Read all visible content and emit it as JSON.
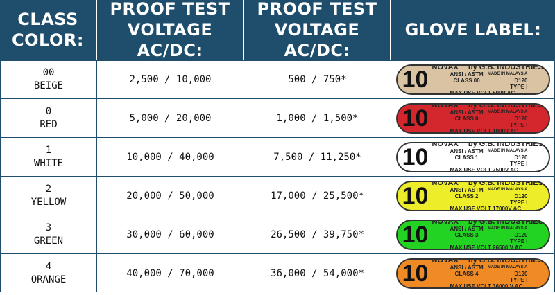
{
  "header": {
    "class_color": [
      "CLASS",
      "COLOR:"
    ],
    "proof_ac_dc_1": [
      "PROOF TEST",
      "VOLTAGE AC/DC:"
    ],
    "proof_ac_dc_2": [
      "PROOF TEST",
      "VOLTAGE AC/DC:"
    ],
    "glove_label": "GLOVE LABEL:"
  },
  "rows": [
    {
      "class": "00",
      "color": "BEIGE",
      "proof1": "2,500 / 10,000",
      "proof2": "500 / 750*",
      "label": {
        "bg": "#d9c3a3",
        "big": "10",
        "line1": "NOVAX™  by G.B. INDUSTRIES",
        "ansi": "ANSI / ASTM",
        "made": "MADE IN MALAYSIA",
        "d120": "D120",
        "class_line": "CLASS 00",
        "type": "TYPE I",
        "bottom": "MAX USE VOLT 500V AC"
      }
    },
    {
      "class": "0",
      "color": "RED",
      "proof1": "5,000 / 20,000",
      "proof2": "1,000 / 1,500*",
      "label": {
        "bg": "#d4262d",
        "big": "10",
        "line1": "NOVAX™  by G.B. INDUSTRIES",
        "ansi": "ANSI / ASTM",
        "made": "MADE IN MALAYSIA",
        "d120": "D120",
        "class_line": "CLASS 0",
        "type": "TYPE I",
        "bottom": "MAX USE VOLT 1000V AC"
      }
    },
    {
      "class": "1",
      "color": "WHITE",
      "proof1": "10,000 / 40,000",
      "proof2": "7,500 / 11,250*",
      "label": {
        "bg": "#ffffff",
        "big": "10",
        "line1": "NOVAX™  by G.B. INDUSTRIES",
        "ansi": "ANSI / ASTM",
        "made": "MADE IN MALAYSIA",
        "d120": "D120",
        "class_line": "CLASS 1",
        "type": "TYPE I",
        "bottom": "MAX USE VOLT 7500V AC"
      }
    },
    {
      "class": "2",
      "color": "YELLOW",
      "proof1": "20,000 / 50,000",
      "proof2": "17,000 / 25,500*",
      "label": {
        "bg": "#eded2a",
        "big": "10",
        "line1": "NOVAX™  by G.B. INDUSTRIES",
        "ansi": "ANSI / ASTM",
        "made": "MADE IN MALAYSIA",
        "d120": "D120",
        "class_line": "CLASS 2",
        "type": "TYPE I",
        "bottom": "MAX USE VOLT 17000V AC"
      }
    },
    {
      "class": "3",
      "color": "GREEN",
      "proof1": "30,000 / 60,000",
      "proof2": "26,500 / 39,750*",
      "label": {
        "bg": "#22d421",
        "big": "10",
        "line1": "NOVAX™  by G.B. INDUSTRIES",
        "ansi": "ANSI / ASTM",
        "made": "MADE IN MALAYSIA",
        "d120": "D120",
        "class_line": "CLASS 3",
        "type": "TYPE I",
        "bottom": "MAX USE VOLT   26500 V AC"
      }
    },
    {
      "class": "4",
      "color": "ORANGE",
      "proof1": "40,000 / 70,000",
      "proof2": "36,000 / 54,000*",
      "label": {
        "bg": "#f08a24",
        "big": "10",
        "line1": "NOVAX™  by G.B. INDUSTRIES",
        "ansi": "ANSI / ASTM",
        "made": "MADE IN MALAYSIA",
        "d120": "D120",
        "class_line": "CLASS 4",
        "type": "TYPE I",
        "bottom": "MAX USE VOLT   36000 V AC"
      }
    }
  ]
}
